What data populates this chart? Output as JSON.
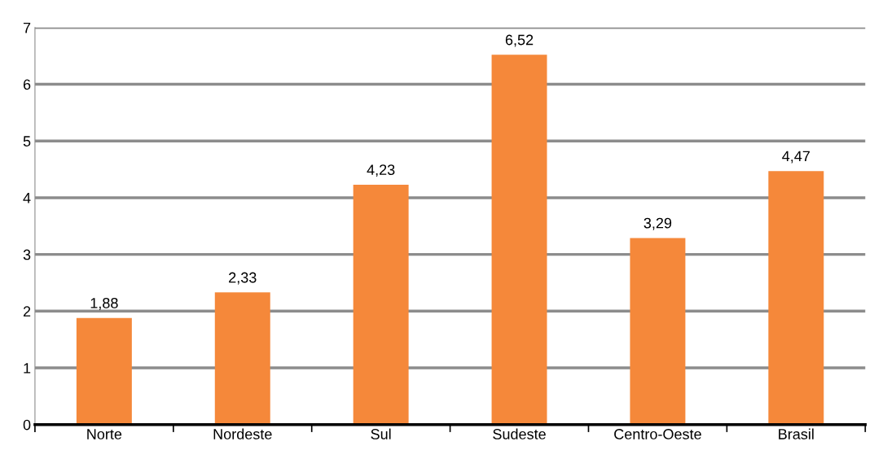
{
  "chart_data": {
    "type": "bar",
    "categories": [
      "Norte",
      "Nordeste",
      "Sul",
      "Sudeste",
      "Centro-Oeste",
      "Brasil"
    ],
    "values": [
      1.88,
      2.33,
      4.23,
      6.52,
      3.29,
      4.47
    ],
    "value_labels": [
      "1,88",
      "2,33",
      "4,23",
      "6,52",
      "3,29",
      "4,47"
    ],
    "color": "#f5883a",
    "ylim": [
      0,
      7
    ],
    "yticks": [
      0,
      1,
      2,
      3,
      4,
      5,
      6,
      7
    ],
    "grid": "y"
  }
}
